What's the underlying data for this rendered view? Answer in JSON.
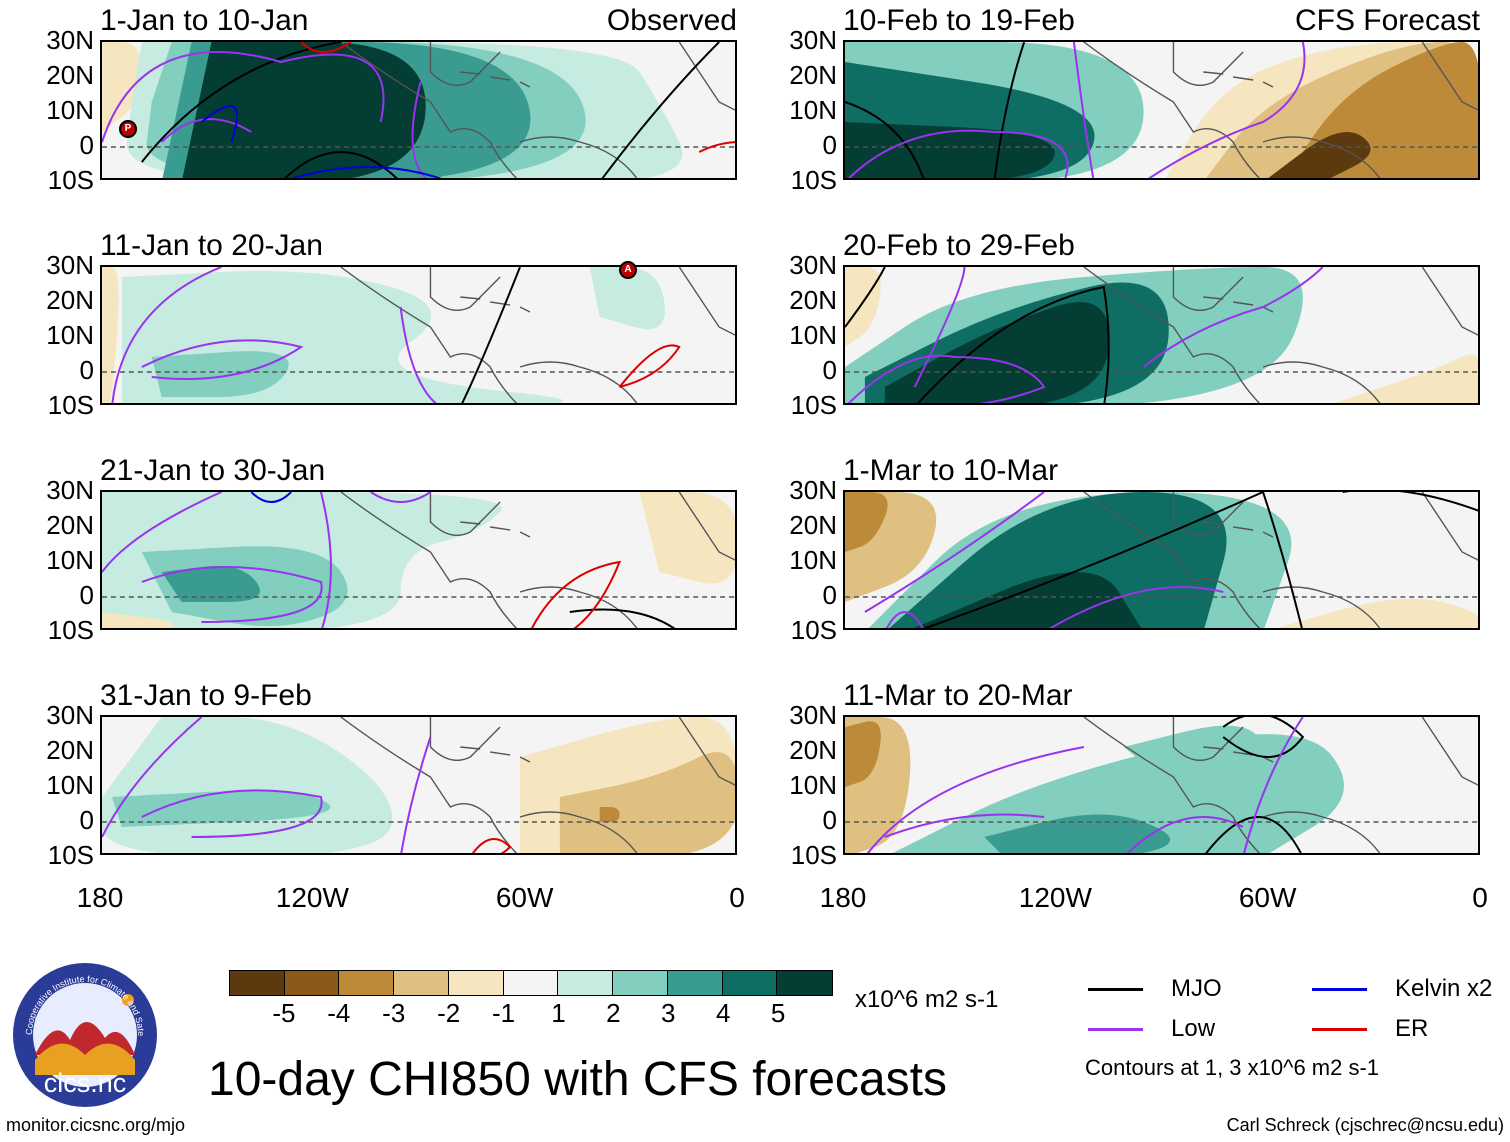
{
  "panels": [
    {
      "title": "1-Jan to 10-Jan",
      "tag": "Observed",
      "mode": "obs1"
    },
    {
      "title": "11-Jan to 20-Jan",
      "tag": "",
      "mode": "obs2"
    },
    {
      "title": "21-Jan to 30-Jan",
      "tag": "",
      "mode": "obs3"
    },
    {
      "title": "31-Jan to 9-Feb",
      "tag": "",
      "mode": "obs4"
    },
    {
      "title": "10-Feb to 19-Feb",
      "tag": "CFS Forecast",
      "mode": "fc1"
    },
    {
      "title": "20-Feb to 29-Feb",
      "tag": "",
      "mode": "fc2"
    },
    {
      "title": "1-Mar to 10-Mar",
      "tag": "",
      "mode": "fc3"
    },
    {
      "title": "11-Mar to 20-Mar",
      "tag": "",
      "mode": "fc4"
    }
  ],
  "lat_labels": [
    "30N",
    "20N",
    "10N",
    "0",
    "10S"
  ],
  "lon_labels": [
    "180",
    "120W",
    "60W",
    "0"
  ],
  "colorbar": {
    "colors": [
      "#5c3a0e",
      "#8b5a1a",
      "#bd8a3a",
      "#dfc080",
      "#f5e6c0",
      "#f4f4f4",
      "#c6ebe1",
      "#82cfc0",
      "#3a9c90",
      "#0f6e63",
      "#033d33"
    ],
    "ticks": [
      "-5",
      "-4",
      "-3",
      "-2",
      "-1",
      "1",
      "2",
      "3",
      "4",
      "5"
    ],
    "units": "x10^6 m2 s-1"
  },
  "legend": {
    "items": [
      {
        "label": "MJO",
        "color": "#000000"
      },
      {
        "label": "Kelvin x2",
        "color": "#0000dd"
      },
      {
        "label": "Low",
        "color": "#9933ee"
      },
      {
        "label": "ER",
        "color": "#dd0000"
      }
    ],
    "note": "Contours at 1, 3 x10^6 m2 s-1"
  },
  "main_title": "10-day CHI850 with CFS forecasts",
  "logo_text": "cics.nc",
  "logo_ring_text": "Cooperative Institute for Climate and Satellites",
  "footer_left": "monitor.cicsnc.org/mjo",
  "footer_right": "Carl Schreck (cjschrec@ncsu.edu)",
  "markers": [
    {
      "panel": 0,
      "letter": "P"
    },
    {
      "panel": 1,
      "letter": "A"
    }
  ]
}
